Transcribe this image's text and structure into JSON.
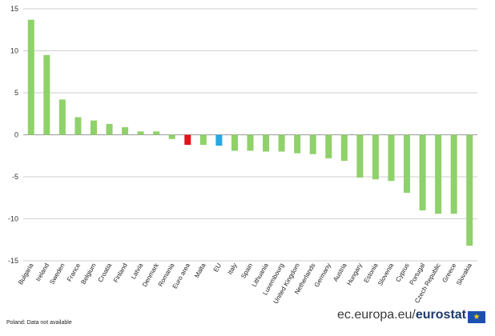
{
  "chart_data": {
    "type": "bar",
    "categories": [
      "Bulgaria",
      "Ireland",
      "Sweden",
      "France",
      "Belgium",
      "Croatia",
      "Finland",
      "Latvia",
      "Denmark",
      "Romania",
      "Euro area",
      "Malta",
      "EU",
      "Italy",
      "Spain",
      "Lithuania",
      "Luxembourg",
      "United Kingdom",
      "Netherlands",
      "Germany",
      "Austria",
      "Hungary",
      "Estonia",
      "Slovenia",
      "Cyprus",
      "Portugal",
      "Czech Republic",
      "Greece",
      "Slovakia"
    ],
    "values": [
      13.7,
      9.5,
      4.2,
      2.1,
      1.7,
      1.3,
      0.9,
      0.4,
      0.4,
      -0.5,
      -1.2,
      -1.2,
      -1.3,
      -1.9,
      -1.9,
      -2.0,
      -2.0,
      -2.2,
      -2.3,
      -2.8,
      -3.1,
      -5.1,
      -5.3,
      -5.5,
      -6.9,
      -9.0,
      -9.4,
      -9.4,
      -13.2
    ],
    "colors": {
      "default": "#8fd16a",
      "Euro area": "#e0141b",
      "EU": "#2aa6e0"
    },
    "ylim": [
      -15,
      15
    ],
    "yticks": [
      "-15",
      "-10",
      "-5",
      "0",
      "5",
      "10",
      "15"
    ],
    "grid": true,
    "title": "",
    "xlabel": "",
    "ylabel": ""
  },
  "footnote": "Poland: Data not available",
  "brand": {
    "prefix": "ec.europa.eu/",
    "name": "eurostat"
  },
  "flag_icon": "eu-flag-icon",
  "flag_stars": "★"
}
